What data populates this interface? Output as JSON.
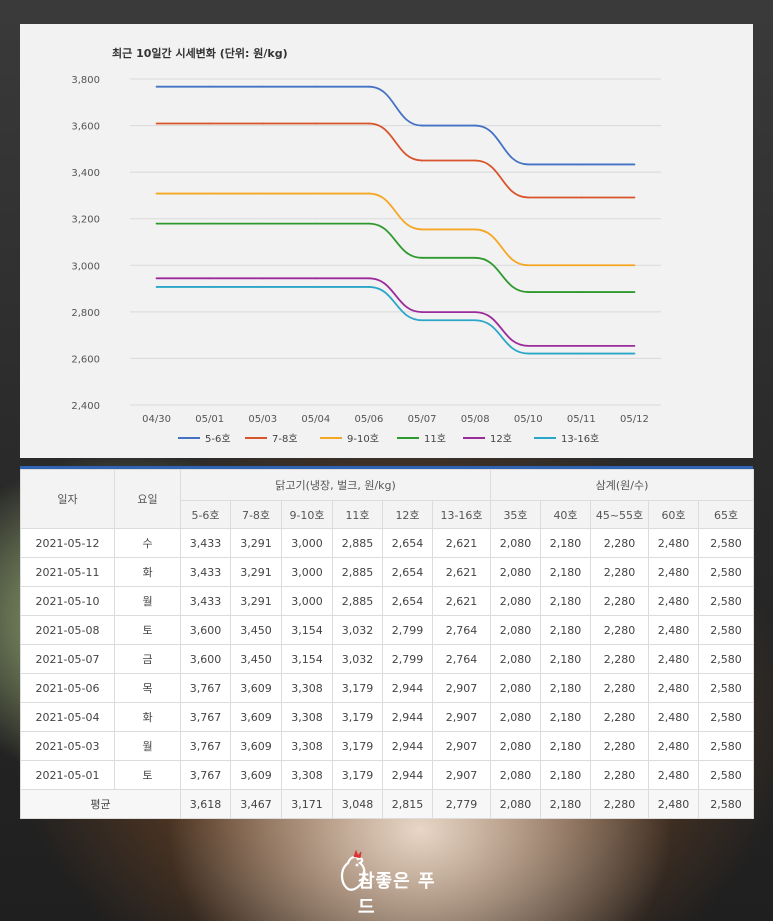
{
  "chart_data": {
    "type": "line",
    "title": "최근 10일간 시세변화 (단위: 원/kg)",
    "categories": [
      "04/30",
      "05/01",
      "05/03",
      "05/04",
      "05/06",
      "05/07",
      "05/08",
      "05/10",
      "05/11",
      "05/12"
    ],
    "ylim": [
      2400,
      3800
    ],
    "yticks": [
      "2,400",
      "2,600",
      "2,800",
      "3,000",
      "3,200",
      "3,400",
      "3,600",
      "3,800"
    ],
    "ytick_values": [
      2400,
      2600,
      2800,
      3000,
      3200,
      3400,
      3600,
      3800
    ],
    "grid": true,
    "legend_position": "bottom",
    "series": [
      {
        "name": "5-6호",
        "color": "#4472c4",
        "values": [
          3767,
          3767,
          3767,
          3767,
          3767,
          3600,
          3600,
          3433,
          3433,
          3433
        ]
      },
      {
        "name": "7-8호",
        "color": "#d9532b",
        "values": [
          3609,
          3609,
          3609,
          3609,
          3609,
          3450,
          3450,
          3291,
          3291,
          3291
        ]
      },
      {
        "name": "9-10호",
        "color": "#f5a623",
        "values": [
          3308,
          3308,
          3308,
          3308,
          3308,
          3154,
          3154,
          3000,
          3000,
          3000
        ]
      },
      {
        "name": "11호",
        "color": "#2e9a2e",
        "values": [
          3179,
          3179,
          3179,
          3179,
          3179,
          3032,
          3032,
          2885,
          2885,
          2885
        ]
      },
      {
        "name": "12호",
        "color": "#9b2a9b",
        "values": [
          2944,
          2944,
          2944,
          2944,
          2944,
          2799,
          2799,
          2654,
          2654,
          2654
        ]
      },
      {
        "name": "13-16호",
        "color": "#2aa6c8",
        "values": [
          2907,
          2907,
          2907,
          2907,
          2907,
          2764,
          2764,
          2621,
          2621,
          2621
        ]
      }
    ]
  },
  "table": {
    "date_header": "일자",
    "day_header": "요일",
    "chicken_group": "닭고기(냉장, 벌크, 원/kg)",
    "samgye_group": "삼계(원/수)",
    "chicken_cols": [
      "5-6호",
      "7-8호",
      "9-10호",
      "11호",
      "12호",
      "13-16호"
    ],
    "samgye_cols": [
      "35호",
      "40호",
      "45~55호",
      "60호",
      "65호"
    ],
    "rows": [
      {
        "date": "2021-05-12",
        "day": "수",
        "vals": [
          "3,433",
          "3,291",
          "3,000",
          "2,885",
          "2,654",
          "2,621",
          "2,080",
          "2,180",
          "2,280",
          "2,480",
          "2,580"
        ]
      },
      {
        "date": "2021-05-11",
        "day": "화",
        "vals": [
          "3,433",
          "3,291",
          "3,000",
          "2,885",
          "2,654",
          "2,621",
          "2,080",
          "2,180",
          "2,280",
          "2,480",
          "2,580"
        ]
      },
      {
        "date": "2021-05-10",
        "day": "월",
        "vals": [
          "3,433",
          "3,291",
          "3,000",
          "2,885",
          "2,654",
          "2,621",
          "2,080",
          "2,180",
          "2,280",
          "2,480",
          "2,580"
        ]
      },
      {
        "date": "2021-05-08",
        "day": "토",
        "vals": [
          "3,600",
          "3,450",
          "3,154",
          "3,032",
          "2,799",
          "2,764",
          "2,080",
          "2,180",
          "2,280",
          "2,480",
          "2,580"
        ]
      },
      {
        "date": "2021-05-07",
        "day": "금",
        "vals": [
          "3,600",
          "3,450",
          "3,154",
          "3,032",
          "2,799",
          "2,764",
          "2,080",
          "2,180",
          "2,280",
          "2,480",
          "2,580"
        ]
      },
      {
        "date": "2021-05-06",
        "day": "목",
        "vals": [
          "3,767",
          "3,609",
          "3,308",
          "3,179",
          "2,944",
          "2,907",
          "2,080",
          "2,180",
          "2,280",
          "2,480",
          "2,580"
        ]
      },
      {
        "date": "2021-05-04",
        "day": "화",
        "vals": [
          "3,767",
          "3,609",
          "3,308",
          "3,179",
          "2,944",
          "2,907",
          "2,080",
          "2,180",
          "2,280",
          "2,480",
          "2,580"
        ]
      },
      {
        "date": "2021-05-03",
        "day": "월",
        "vals": [
          "3,767",
          "3,609",
          "3,308",
          "3,179",
          "2,944",
          "2,907",
          "2,080",
          "2,180",
          "2,280",
          "2,480",
          "2,580"
        ]
      },
      {
        "date": "2021-05-01",
        "day": "토",
        "vals": [
          "3,767",
          "3,609",
          "3,308",
          "3,179",
          "2,944",
          "2,907",
          "2,080",
          "2,180",
          "2,280",
          "2,480",
          "2,580"
        ]
      }
    ],
    "average": {
      "label": "평균",
      "vals": [
        "3,618",
        "3,467",
        "3,171",
        "3,048",
        "2,815",
        "2,779",
        "2,080",
        "2,180",
        "2,280",
        "2,480",
        "2,580"
      ]
    }
  },
  "brand": {
    "name": "참좋은 푸드"
  }
}
